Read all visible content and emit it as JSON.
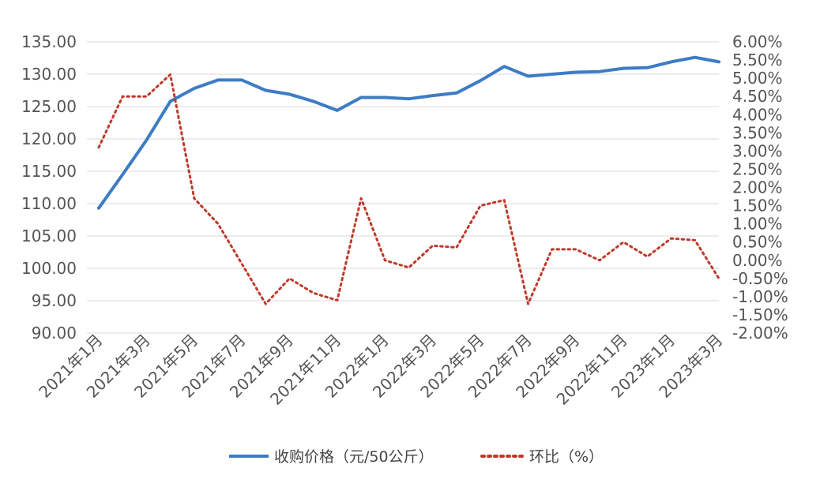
{
  "chart_data": {
    "type": "line",
    "dual_axis": true,
    "grid": "horizontal",
    "legend_position": "bottom",
    "x": [
      "2021年1月",
      "2021年2月",
      "2021年3月",
      "2021年4月",
      "2021年5月",
      "2021年6月",
      "2021年7月",
      "2021年8月",
      "2021年9月",
      "2021年10月",
      "2021年11月",
      "2021年12月",
      "2022年1月",
      "2022年2月",
      "2022年3月",
      "2022年4月",
      "2022年5月",
      "2022年6月",
      "2022年7月",
      "2022年8月",
      "2022年9月",
      "2022年10月",
      "2022年11月",
      "2022年12月",
      "2023年1月",
      "2023年2月",
      "2023年3月"
    ],
    "x_tick_labels": [
      "2021年1月",
      "2021年3月",
      "2021年5月",
      "2021年7月",
      "2021年9月",
      "2021年11月",
      "2022年1月",
      "2022年3月",
      "2022年5月",
      "2022年7月",
      "2022年9月",
      "2022年11月",
      "2023年1月",
      "2023年3月"
    ],
    "y_left": {
      "range": [
        90,
        135
      ],
      "ticks": [
        "90.00",
        "95.00",
        "100.00",
        "105.00",
        "110.00",
        "115.00",
        "120.00",
        "125.00",
        "130.00",
        "135.00"
      ]
    },
    "y_right": {
      "range": [
        -2.0,
        6.0
      ],
      "ticks": [
        "-2.00%",
        "-1.50%",
        "-1.00%",
        "-0.50%",
        "0.00%",
        "0.50%",
        "1.00%",
        "1.50%",
        "2.00%",
        "2.50%",
        "3.00%",
        "3.50%",
        "4.00%",
        "4.50%",
        "5.00%",
        "5.50%",
        "6.00%"
      ]
    },
    "series": [
      {
        "name": "收购价格（元/50公斤）",
        "axis": "left",
        "style": "solid",
        "color": "#3d7cc4",
        "values": [
          109.3,
          114.5,
          119.8,
          125.8,
          127.8,
          129.1,
          129.1,
          127.5,
          126.9,
          125.8,
          124.4,
          126.4,
          126.4,
          126.2,
          126.7,
          127.1,
          129.0,
          131.2,
          129.7,
          130.0,
          130.3,
          130.4,
          130.9,
          131.0,
          131.9,
          132.6,
          131.9
        ]
      },
      {
        "name": "环比（%）",
        "axis": "right",
        "style": "dotted",
        "color": "#c0392b",
        "values": [
          3.1,
          4.5,
          4.5,
          5.1,
          1.7,
          1.0,
          -0.1,
          -1.2,
          -0.5,
          -0.9,
          -1.1,
          1.7,
          0.0,
          -0.2,
          0.4,
          0.35,
          1.5,
          1.65,
          -1.2,
          0.3,
          0.3,
          0.0,
          0.5,
          0.1,
          0.6,
          0.55,
          -0.5
        ]
      }
    ]
  }
}
